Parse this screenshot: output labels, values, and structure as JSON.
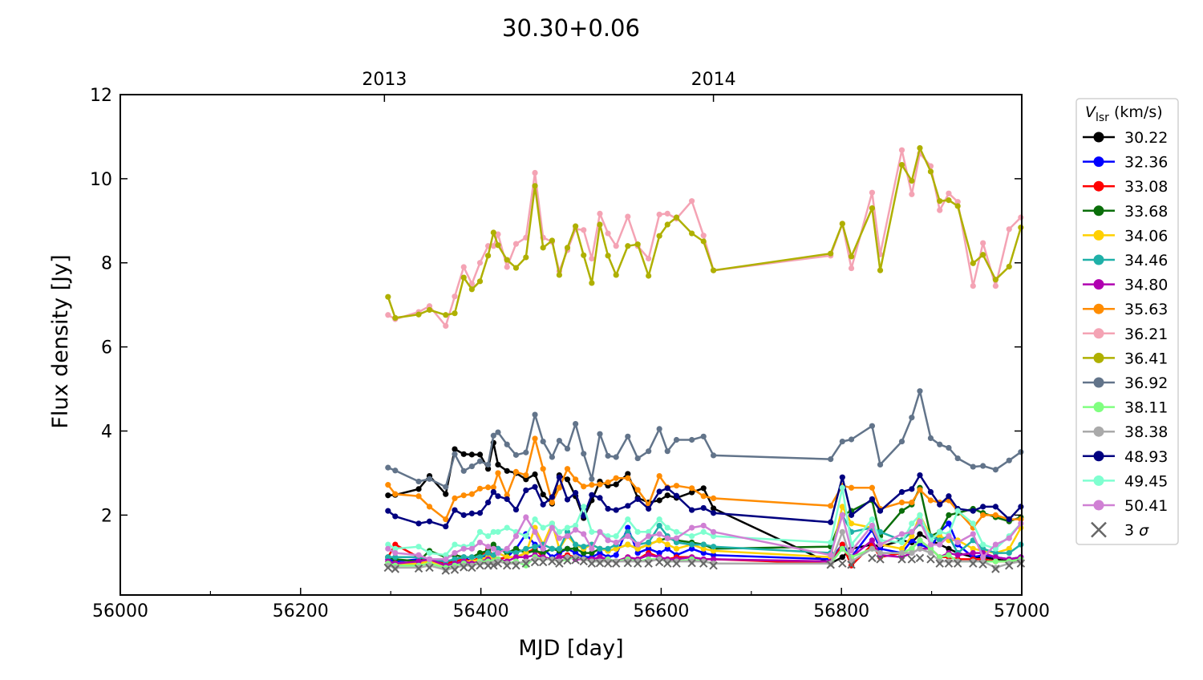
{
  "chart_data": {
    "type": "line",
    "title": "30.30+0.06",
    "xlabel": "MJD [day]",
    "ylabel": "Flux density [Jy]",
    "xlim": [
      56000,
      57000
    ],
    "ylim": [
      0.1,
      12
    ],
    "xticks": [
      "56000",
      "56200",
      "56400",
      "56600",
      "56800",
      "57000"
    ],
    "xtick_values": [
      56000,
      56200,
      56400,
      56600,
      56800,
      57000
    ],
    "xminor_values": [
      56100,
      56300,
      56500,
      56700,
      56900
    ],
    "yticks": [
      "2",
      "4",
      "6",
      "8",
      "10",
      "12"
    ],
    "ytick_values": [
      2,
      4,
      6,
      8,
      10,
      12
    ],
    "top_axis": {
      "labels": [
        "2013",
        "2014"
      ],
      "values": [
        56293,
        56658
      ]
    },
    "grid": false,
    "legend": {
      "title_main": "V",
      "title_sub": "lsr",
      "title_unit": " (km/s)",
      "placement": "outside-right"
    },
    "x": [
      56297,
      56305,
      56331,
      56343,
      56361,
      56371,
      56381,
      56390,
      56399,
      56408,
      56414,
      56419,
      56429,
      56439,
      56450,
      56460,
      56469,
      56479,
      56487,
      56496,
      56505,
      56514,
      56523,
      56532,
      56541,
      56550,
      56563,
      56574,
      56586,
      56598,
      56607,
      56617,
      56634,
      56647,
      56658,
      56788,
      56801,
      56811,
      56834,
      56843,
      56867,
      56878,
      56887,
      56899,
      56909,
      56919,
      56929,
      56946,
      56957,
      56971,
      56986,
      56999
    ],
    "series": [
      {
        "name": "30.22",
        "color": "#000000",
        "values": [
          2.47,
          2.48,
          2.62,
          2.93,
          2.5,
          3.57,
          3.45,
          3.44,
          3.44,
          3.1,
          3.72,
          3.2,
          3.05,
          3.0,
          2.85,
          2.97,
          2.49,
          2.27,
          2.95,
          2.85,
          2.45,
          1.93,
          2.35,
          2.8,
          2.7,
          2.73,
          2.98,
          2.41,
          2.3,
          2.35,
          2.47,
          2.41,
          2.54,
          2.64,
          2.16,
          0.85,
          1.0,
          1.2,
          1.3,
          1.25,
          1.4,
          1.35,
          1.55,
          1.4,
          1.3,
          1.2,
          1.1,
          1.0,
          1.0,
          0.95,
          0.9,
          0.9
        ]
      },
      {
        "name": "32.36",
        "color": "#0000ff",
        "values": [
          0.95,
          0.9,
          0.95,
          0.95,
          0.85,
          0.95,
          1.0,
          0.9,
          1.0,
          1.05,
          1.0,
          1.1,
          1.0,
          1.2,
          1.55,
          1.3,
          1.2,
          1.0,
          1.1,
          1.2,
          1.1,
          1.0,
          1.0,
          1.1,
          1.0,
          1.05,
          1.7,
          1.1,
          1.2,
          1.1,
          1.2,
          1.05,
          1.2,
          1.1,
          1.05,
          0.95,
          1.3,
          1.0,
          1.65,
          1.2,
          1.1,
          1.4,
          1.3,
          1.2,
          1.6,
          1.8,
          1.3,
          1.0,
          1.05,
          1.0,
          0.95,
          1.0
        ]
      },
      {
        "name": "33.08",
        "color": "#ff0000",
        "values": [
          1.0,
          1.3,
          1.0,
          0.9,
          0.85,
          0.9,
          0.95,
          0.9,
          1.0,
          1.2,
          1.0,
          0.95,
          1.0,
          1.0,
          1.1,
          1.2,
          1.0,
          0.95,
          1.0,
          1.05,
          1.0,
          0.95,
          0.95,
          1.0,
          0.95,
          0.9,
          1.0,
          0.95,
          1.1,
          1.0,
          0.95,
          1.0,
          1.0,
          0.95,
          0.95,
          0.85,
          1.3,
          0.8,
          1.3,
          1.0,
          1.1,
          1.2,
          1.4,
          1.2,
          1.0,
          1.0,
          0.95,
          0.95,
          0.95,
          0.9,
          0.9,
          0.95
        ]
      },
      {
        "name": "33.68",
        "color": "#0a6e0a",
        "values": [
          1.0,
          0.95,
          0.9,
          1.15,
          1.0,
          1.05,
          1.0,
          1.0,
          1.1,
          1.15,
          1.3,
          1.2,
          1.1,
          1.2,
          1.1,
          1.15,
          1.1,
          1.2,
          1.15,
          1.2,
          1.2,
          1.1,
          1.1,
          1.2,
          1.15,
          1.2,
          1.3,
          1.2,
          1.3,
          1.4,
          1.45,
          1.4,
          1.35,
          1.3,
          1.2,
          1.25,
          2.0,
          2.1,
          2.35,
          1.5,
          2.1,
          2.25,
          2.65,
          1.5,
          1.6,
          2.0,
          2.05,
          2.15,
          2.05,
          1.95,
          1.85,
          1.95
        ]
      },
      {
        "name": "34.06",
        "color": "#ffd000",
        "values": [
          0.9,
          0.85,
          0.85,
          0.9,
          0.8,
          0.85,
          0.9,
          0.9,
          0.95,
          1.0,
          1.0,
          1.1,
          1.0,
          1.0,
          1.1,
          1.7,
          1.3,
          1.8,
          1.2,
          1.5,
          1.3,
          1.2,
          1.3,
          1.2,
          1.15,
          1.2,
          1.3,
          1.2,
          1.3,
          1.4,
          1.3,
          1.2,
          1.3,
          1.2,
          1.15,
          1.0,
          2.2,
          1.8,
          1.7,
          1.3,
          1.2,
          1.5,
          2.0,
          1.5,
          1.5,
          1.4,
          1.4,
          1.2,
          1.15,
          1.1,
          1.2,
          1.7
        ]
      },
      {
        "name": "34.46",
        "color": "#1fb0a8",
        "values": [
          1.0,
          1.0,
          1.0,
          0.95,
          0.9,
          0.95,
          1.0,
          1.0,
          1.0,
          1.1,
          1.05,
          1.2,
          1.15,
          1.1,
          1.2,
          1.25,
          1.3,
          1.2,
          1.2,
          1.6,
          1.3,
          1.25,
          1.3,
          1.2,
          1.2,
          1.3,
          1.6,
          1.3,
          1.35,
          1.75,
          1.5,
          1.35,
          1.3,
          1.3,
          1.25,
          1.1,
          2.0,
          1.6,
          1.7,
          1.6,
          1.4,
          1.6,
          1.8,
          1.5,
          1.4,
          1.5,
          1.1,
          1.4,
          1.2,
          1.1,
          1.1,
          1.3
        ]
      },
      {
        "name": "34.80",
        "color": "#b000b0",
        "values": [
          0.9,
          0.85,
          0.9,
          0.95,
          0.8,
          0.85,
          0.9,
          0.85,
          0.9,
          0.95,
          0.9,
          0.95,
          0.9,
          1.0,
          1.0,
          1.05,
          1.0,
          0.95,
          1.0,
          1.0,
          0.95,
          0.95,
          0.95,
          1.0,
          0.95,
          0.9,
          1.0,
          0.95,
          1.05,
          1.0,
          0.95,
          0.95,
          1.0,
          0.95,
          0.95,
          0.9,
          1.2,
          1.0,
          1.4,
          1.05,
          1.0,
          1.1,
          1.2,
          1.2,
          1.0,
          1.1,
          1.05,
          1.1,
          1.1,
          1.0,
          0.95,
          1.0
        ]
      },
      {
        "name": "35.63",
        "color": "#ff8c00",
        "values": [
          2.72,
          2.5,
          2.45,
          2.2,
          1.9,
          2.4,
          2.47,
          2.5,
          2.63,
          2.66,
          2.66,
          3.0,
          2.47,
          3.03,
          2.95,
          3.82,
          3.1,
          2.3,
          2.65,
          3.1,
          2.85,
          2.68,
          2.72,
          2.73,
          2.78,
          2.88,
          2.88,
          2.6,
          2.25,
          2.93,
          2.66,
          2.7,
          2.64,
          2.45,
          2.4,
          2.22,
          2.7,
          2.65,
          2.65,
          2.15,
          2.3,
          2.3,
          2.6,
          2.35,
          2.3,
          2.35,
          2.1,
          1.7,
          2.0,
          2.0,
          1.9,
          1.9
        ]
      },
      {
        "name": "36.21",
        "color": "#f4a3b4",
        "values": [
          6.76,
          6.66,
          6.83,
          6.97,
          6.5,
          7.2,
          7.9,
          7.5,
          8.0,
          8.4,
          8.4,
          8.68,
          7.9,
          8.45,
          8.6,
          10.14,
          8.6,
          8.5,
          7.8,
          8.3,
          8.8,
          8.78,
          8.1,
          9.17,
          8.7,
          8.4,
          9.1,
          8.4,
          8.1,
          9.15,
          9.17,
          9.05,
          9.47,
          8.65,
          7.82,
          8.17,
          8.93,
          7.87,
          9.67,
          8.2,
          10.68,
          9.63,
          10.6,
          10.3,
          9.25,
          9.65,
          9.45,
          7.45,
          8.47,
          7.45,
          8.8,
          9.08
        ]
      },
      {
        "name": "36.41",
        "color": "#afb000",
        "values": [
          7.19,
          6.69,
          6.77,
          6.88,
          6.76,
          6.8,
          7.65,
          7.37,
          7.56,
          8.17,
          8.72,
          8.42,
          8.07,
          7.88,
          8.13,
          9.83,
          8.36,
          8.53,
          7.71,
          8.36,
          8.87,
          8.18,
          7.52,
          8.91,
          8.17,
          7.71,
          8.4,
          8.44,
          7.69,
          8.64,
          8.91,
          9.08,
          8.7,
          8.51,
          7.82,
          8.22,
          8.93,
          8.15,
          9.3,
          7.82,
          10.33,
          9.95,
          10.73,
          10.17,
          9.47,
          9.49,
          9.35,
          7.99,
          8.19,
          7.6,
          7.91,
          8.84
        ]
      },
      {
        "name": "36.92",
        "color": "#62748a",
        "values": [
          3.13,
          3.06,
          2.8,
          2.86,
          2.67,
          3.45,
          3.05,
          3.16,
          3.28,
          3.2,
          3.89,
          3.97,
          3.68,
          3.43,
          3.49,
          4.39,
          3.75,
          3.38,
          3.77,
          3.58,
          4.17,
          3.46,
          2.86,
          3.93,
          3.41,
          3.38,
          3.87,
          3.35,
          3.52,
          4.05,
          3.52,
          3.79,
          3.79,
          3.87,
          3.42,
          3.33,
          3.75,
          3.8,
          4.12,
          3.2,
          3.75,
          4.32,
          4.95,
          3.83,
          3.68,
          3.6,
          3.35,
          3.15,
          3.17,
          3.08,
          3.3,
          3.5
        ]
      },
      {
        "name": "38.11",
        "color": "#80ff80",
        "values": [
          0.85,
          0.8,
          0.8,
          0.85,
          0.75,
          0.8,
          0.85,
          0.8,
          0.9,
          0.9,
          0.9,
          0.95,
          0.85,
          0.9,
          0.8,
          1.0,
          0.95,
          0.95,
          0.9,
          0.95,
          1.0,
          0.95,
          0.9,
          0.9,
          0.95,
          0.9,
          0.95,
          0.9,
          0.95,
          0.95,
          0.9,
          0.9,
          0.95,
          0.9,
          0.85,
          0.85,
          1.2,
          1.0,
          1.2,
          1.1,
          1.1,
          1.2,
          1.4,
          1.2,
          1.0,
          1.05,
          0.9,
          0.9,
          0.9,
          0.9,
          0.9,
          0.95
        ]
      },
      {
        "name": "38.38",
        "color": "#aaaaaa",
        "values": [
          0.8,
          0.75,
          0.75,
          0.8,
          0.7,
          0.75,
          0.8,
          0.8,
          0.85,
          0.85,
          0.85,
          0.9,
          0.85,
          0.85,
          0.9,
          0.95,
          0.95,
          0.95,
          0.9,
          1.0,
          1.0,
          0.95,
          0.9,
          0.9,
          0.9,
          0.9,
          0.9,
          0.9,
          0.9,
          0.95,
          0.9,
          0.9,
          0.9,
          0.9,
          0.85,
          0.85,
          1.6,
          0.9,
          1.2,
          1.1,
          1.1,
          1.1,
          1.2,
          1.1,
          0.9,
          0.9,
          0.9,
          0.9,
          0.9,
          0.75,
          0.85,
          0.9
        ]
      },
      {
        "name": "48.93",
        "color": "#000080",
        "values": [
          2.1,
          1.97,
          1.8,
          1.85,
          1.73,
          2.12,
          2.0,
          2.04,
          2.05,
          2.3,
          2.55,
          2.45,
          2.38,
          2.13,
          2.59,
          2.67,
          2.25,
          2.43,
          2.9,
          2.37,
          2.53,
          1.98,
          2.48,
          2.41,
          2.15,
          2.12,
          2.22,
          2.38,
          2.15,
          2.56,
          2.64,
          2.46,
          2.12,
          2.17,
          2.05,
          1.83,
          2.9,
          2.0,
          2.38,
          2.1,
          2.55,
          2.62,
          2.95,
          2.55,
          2.25,
          2.45,
          2.15,
          2.1,
          2.2,
          2.2,
          1.9,
          2.2
        ]
      },
      {
        "name": "49.45",
        "color": "#7fffd0",
        "values": [
          1.3,
          1.2,
          1.25,
          1.1,
          1.05,
          1.3,
          1.25,
          1.3,
          1.6,
          1.5,
          1.6,
          1.6,
          1.7,
          1.6,
          1.5,
          1.9,
          1.7,
          1.8,
          1.6,
          1.7,
          1.75,
          2.2,
          1.6,
          1.6,
          1.5,
          1.5,
          1.9,
          1.6,
          1.6,
          1.9,
          1.7,
          1.6,
          1.5,
          1.6,
          1.5,
          1.35,
          2.65,
          1.3,
          1.9,
          1.4,
          1.35,
          1.8,
          2.0,
          1.4,
          1.6,
          1.55,
          2.1,
          1.8,
          1.3,
          1.2,
          1.5,
          1.8
        ]
      },
      {
        "name": "50.41",
        "color": "#d080d4",
        "values": [
          1.2,
          1.1,
          1.05,
          0.95,
          0.95,
          1.1,
          1.2,
          1.2,
          1.35,
          1.25,
          1.2,
          1.1,
          1.2,
          1.5,
          1.95,
          1.6,
          1.2,
          1.7,
          1.45,
          1.5,
          1.65,
          1.55,
          1.2,
          1.6,
          1.4,
          1.35,
          1.5,
          1.3,
          1.5,
          1.55,
          1.45,
          1.45,
          1.7,
          1.75,
          1.6,
          1.05,
          2.0,
          1.15,
          1.75,
          1.3,
          1.55,
          1.6,
          1.85,
          1.3,
          1.3,
          1.5,
          1.35,
          1.55,
          1.0,
          1.3,
          1.45,
          1.8
        ]
      }
    ],
    "sigma3": {
      "name": "3 σ",
      "label_num": "3",
      "label_sym": "σ",
      "color": "#666666",
      "values": [
        0.75,
        0.72,
        0.73,
        0.75,
        0.68,
        0.7,
        0.76,
        0.75,
        0.8,
        0.8,
        0.8,
        0.85,
        0.8,
        0.8,
        0.85,
        0.88,
        0.88,
        0.9,
        0.85,
        0.92,
        0.93,
        0.9,
        0.85,
        0.86,
        0.85,
        0.85,
        0.86,
        0.85,
        0.85,
        0.88,
        0.85,
        0.85,
        0.86,
        0.85,
        0.8,
        0.82,
        0.85,
        0.82,
        0.98,
        0.95,
        0.95,
        0.95,
        0.98,
        0.95,
        0.85,
        0.85,
        0.85,
        0.85,
        0.83,
        0.72,
        0.8,
        0.85
      ]
    }
  }
}
